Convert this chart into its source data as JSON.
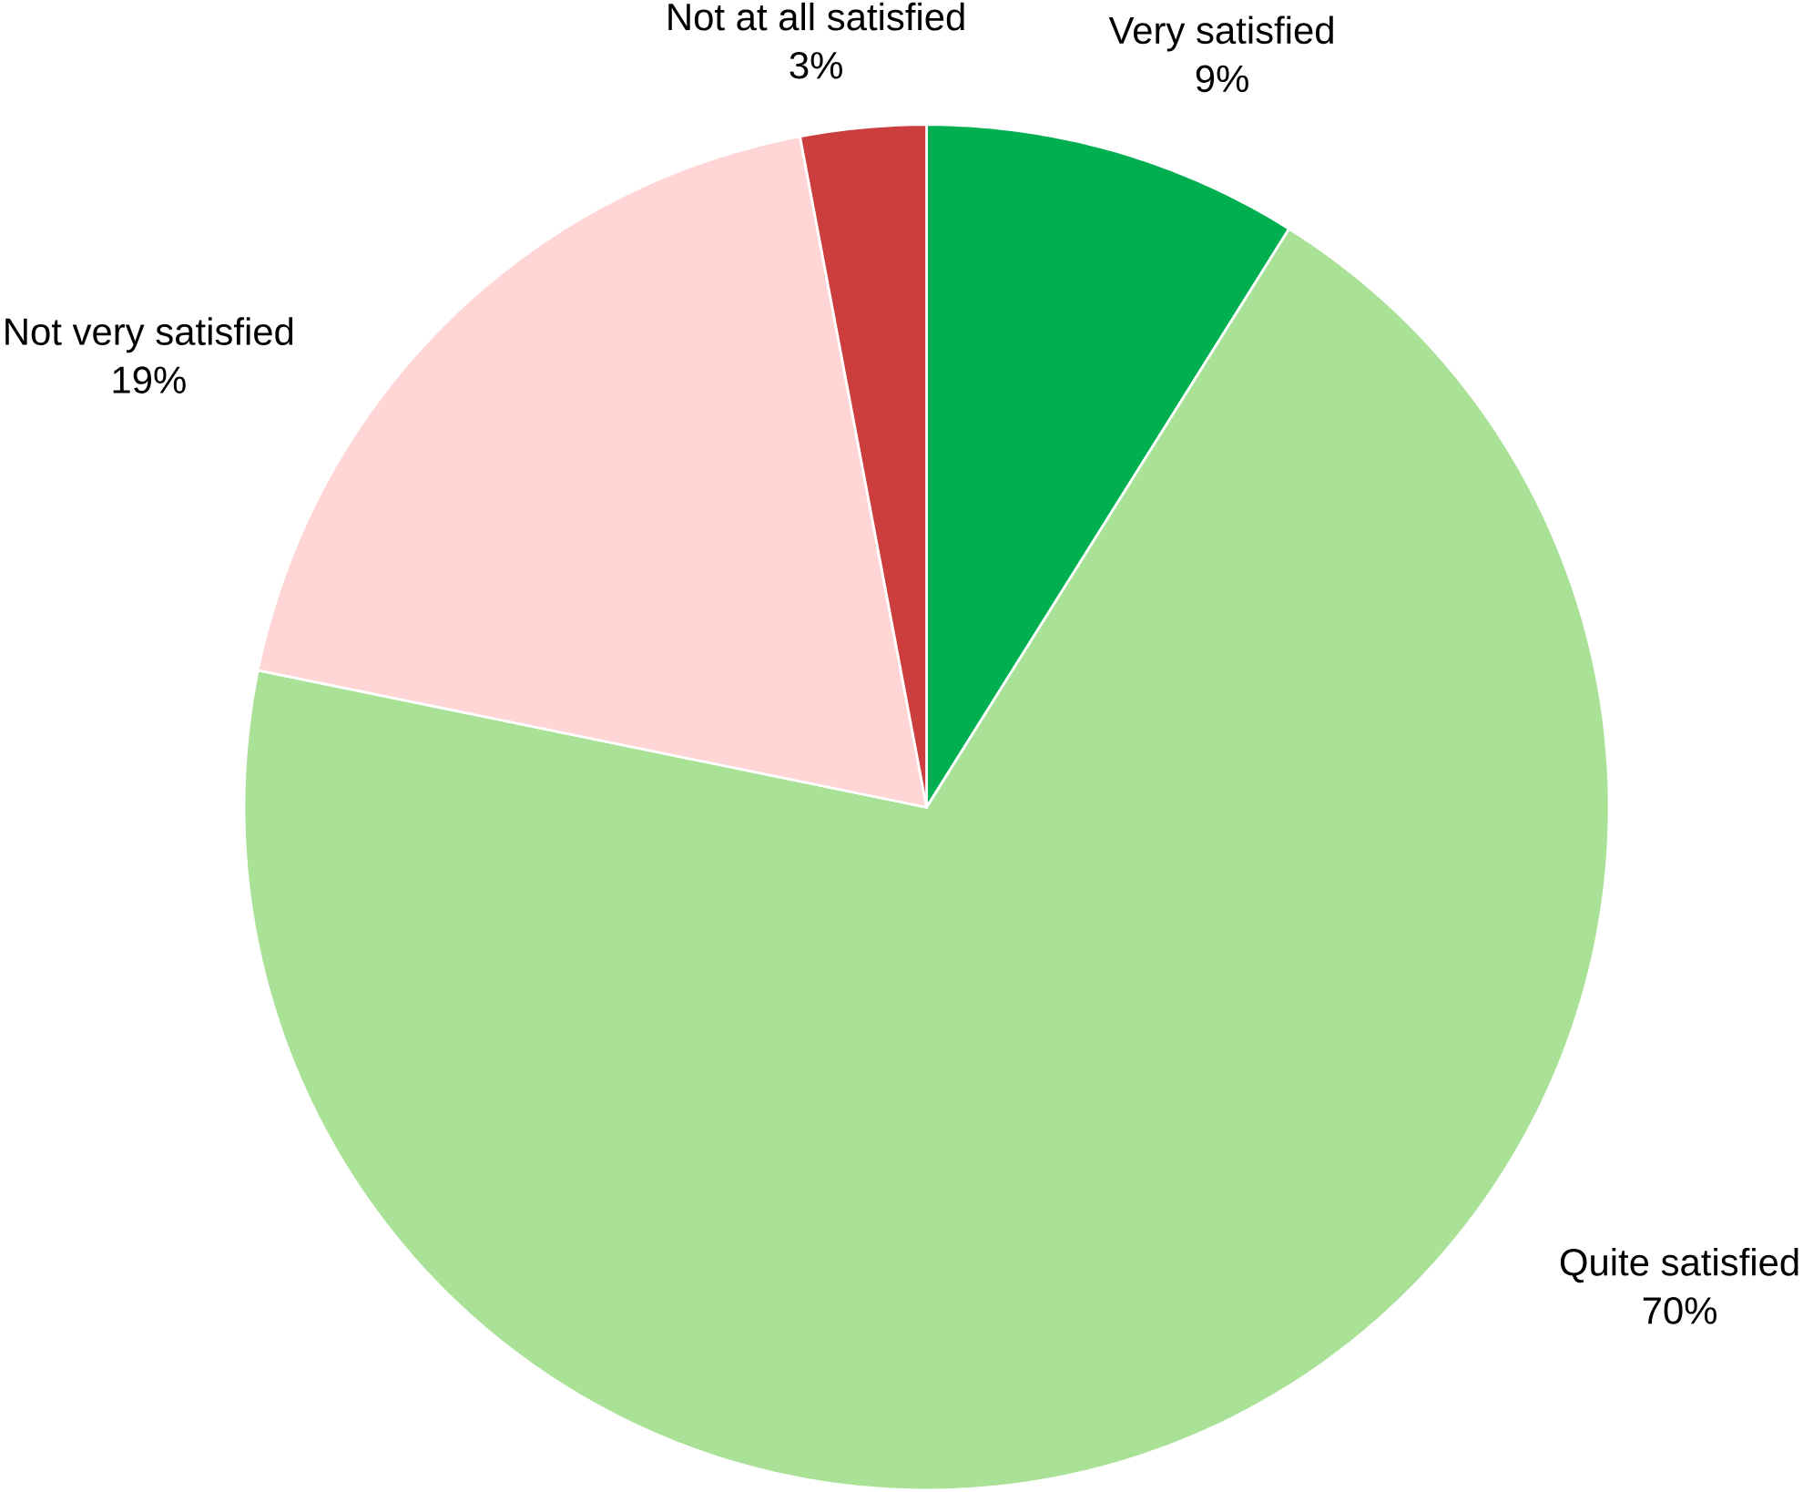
{
  "chart_data": {
    "type": "pie",
    "categories": [
      "Very satisfied",
      "Quite satisfied",
      "Not very satisfied",
      "Not at all satisfied"
    ],
    "values": [
      9,
      70,
      19,
      3
    ],
    "value_labels": [
      "9%",
      "70%",
      "19%",
      "3%"
    ],
    "colors": [
      "#00b050",
      "#a9e197",
      "#ffd5d5",
      "#cc3d3d"
    ]
  }
}
